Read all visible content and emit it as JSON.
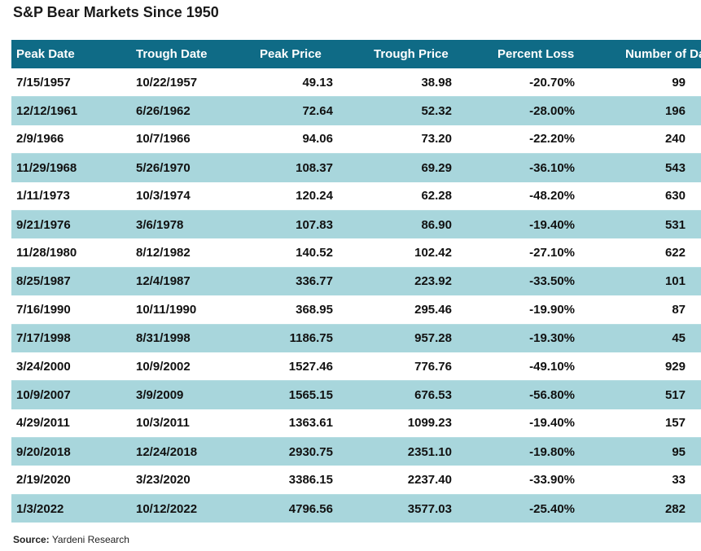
{
  "title": "S&P Bear Markets Since 1950",
  "chart_data": {
    "type": "table",
    "title": "S&P Bear Markets Since 1950",
    "columns": [
      "Peak Date",
      "Trough Date",
      "Peak Price",
      "Trough Price",
      "Percent Loss",
      "Number of Days"
    ],
    "rows": [
      [
        "7/15/1957",
        "10/22/1957",
        "49.13",
        "38.98",
        "-20.70%",
        "99"
      ],
      [
        "12/12/1961",
        "6/26/1962",
        "72.64",
        "52.32",
        "-28.00%",
        "196"
      ],
      [
        "2/9/1966",
        "10/7/1966",
        "94.06",
        "73.20",
        "-22.20%",
        "240"
      ],
      [
        "11/29/1968",
        "5/26/1970",
        "108.37",
        "69.29",
        "-36.10%",
        "543"
      ],
      [
        "1/11/1973",
        "10/3/1974",
        "120.24",
        "62.28",
        "-48.20%",
        "630"
      ],
      [
        "9/21/1976",
        "3/6/1978",
        "107.83",
        "86.90",
        "-19.40%",
        "531"
      ],
      [
        "11/28/1980",
        "8/12/1982",
        "140.52",
        "102.42",
        "-27.10%",
        "622"
      ],
      [
        "8/25/1987",
        "12/4/1987",
        "336.77",
        "223.92",
        "-33.50%",
        "101"
      ],
      [
        "7/16/1990",
        "10/11/1990",
        "368.95",
        "295.46",
        "-19.90%",
        "87"
      ],
      [
        "7/17/1998",
        "8/31/1998",
        "1186.75",
        "957.28",
        "-19.30%",
        "45"
      ],
      [
        "3/24/2000",
        "10/9/2002",
        "1527.46",
        "776.76",
        "-49.10%",
        "929"
      ],
      [
        "10/9/2007",
        "3/9/2009",
        "1565.15",
        "676.53",
        "-56.80%",
        "517"
      ],
      [
        "4/29/2011",
        "10/3/2011",
        "1363.61",
        "1099.23",
        "-19.40%",
        "157"
      ],
      [
        "9/20/2018",
        "12/24/2018",
        "2930.75",
        "2351.10",
        "-19.80%",
        "95"
      ],
      [
        "2/19/2020",
        "3/23/2020",
        "3386.15",
        "2237.40",
        "-33.90%",
        "33"
      ],
      [
        "1/3/2022",
        "10/12/2022",
        "4796.56",
        "3577.03",
        "-25.40%",
        "282"
      ]
    ]
  },
  "source": {
    "label": "Source:",
    "text": "Yardeni Research"
  },
  "colors": {
    "header_bg": "#0f6b86",
    "header_text": "#ffffff",
    "alt_row_bg": "#a8d6dc"
  }
}
